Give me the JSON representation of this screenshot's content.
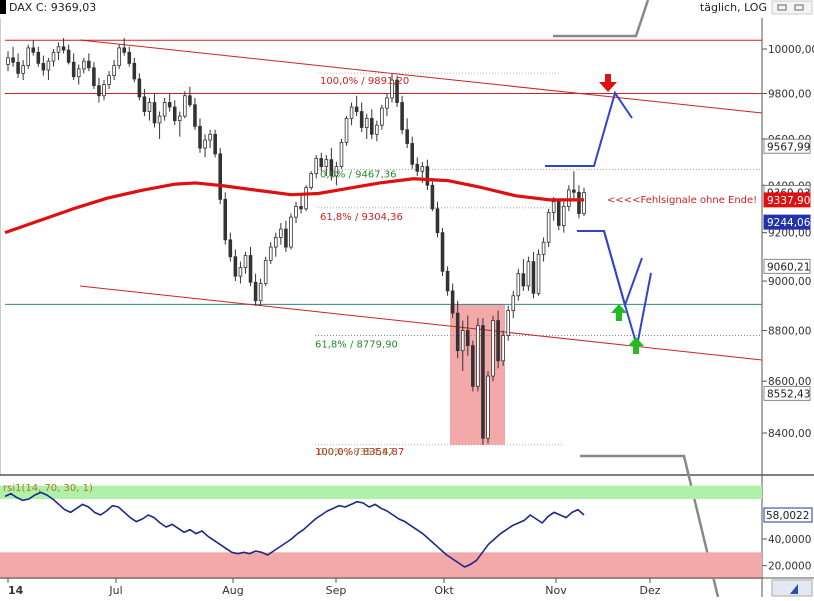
{
  "header": {
    "instrument": "DAX C: 9369,03",
    "scale": "täglich, LOG"
  },
  "chart_data": [
    {
      "type": "candlestick",
      "title": "DAX C: 9369,03",
      "scale": "log",
      "grid": false,
      "price_ticks": [
        "10000,00",
        "9800,00",
        "9600,00",
        "9400,00",
        "9200,00",
        "9000,00",
        "8800,00",
        "8600,00",
        "8400,00"
      ],
      "x_labels": [
        "14",
        "Jul",
        "Aug",
        "Sep",
        "Okt",
        "Nov",
        "Dez"
      ],
      "price_tags": [
        {
          "label": "9567,99",
          "value": 9567.99,
          "style": "outlined"
        },
        {
          "label": "9369,03",
          "value": 9369.03,
          "style": "outlined"
        },
        {
          "label": "9337,90",
          "value": 9337.9,
          "style": "red"
        },
        {
          "label": "9244,06",
          "value": 9244.06,
          "style": "blue"
        },
        {
          "label": "9060,21",
          "value": 9060.21,
          "style": "outlined"
        },
        {
          "label": "8552,43",
          "value": 8552.43,
          "style": "outlined"
        }
      ],
      "fib_labels": [
        {
          "label": "100,0% / 9891,20",
          "value": 9891.2
        },
        {
          "label": "0,0% / 9467,36",
          "value": 9467.36
        },
        {
          "label": "61,8% / 9304,36",
          "value": 9304.36
        },
        {
          "label": "61,8% / 8779,90",
          "value": 8779.9
        },
        {
          "label": "100,0% / 8354,87",
          "value": 8354.87
        },
        {
          "label": "0,0% / 8354,87",
          "value": 8354.87
        }
      ],
      "annotation": "<<<<Fehlsignale ohne Ende!",
      "horizontal_lines": [
        10040,
        9800,
        8905
      ],
      "series": [
        {
          "type": "candles",
          "values": [
            [
              9930,
              9990,
              9900,
              9960
            ],
            [
              9960,
              10010,
              9920,
              9940
            ],
            [
              9940,
              9980,
              9870,
              9890
            ],
            [
              9890,
              9950,
              9860,
              9925
            ],
            [
              9925,
              10020,
              9910,
              10005
            ],
            [
              10005,
              10040,
              9970,
              9985
            ],
            [
              9985,
              10010,
              9920,
              9935
            ],
            [
              9935,
              9970,
              9880,
              9905
            ],
            [
              9905,
              9960,
              9860,
              9945
            ],
            [
              9945,
              10000,
              9920,
              9985
            ],
            [
              9985,
              10030,
              9950,
              10010
            ],
            [
              10010,
              10050,
              9980,
              9995
            ],
            [
              9995,
              10020,
              9930,
              9940
            ],
            [
              9940,
              9980,
              9860,
              9875
            ],
            [
              9875,
              9930,
              9840,
              9910
            ],
            [
              9910,
              9960,
              9890,
              9945
            ],
            [
              9945,
              9980,
              9900,
              9915
            ],
            [
              9915,
              9940,
              9820,
              9835
            ],
            [
              9835,
              9870,
              9760,
              9790
            ],
            [
              9790,
              9860,
              9770,
              9840
            ],
            [
              9840,
              9900,
              9820,
              9880
            ],
            [
              9880,
              9950,
              9860,
              9925
            ],
            [
              9925,
              10020,
              9910,
              10005
            ],
            [
              10005,
              10050,
              9970,
              9985
            ],
            [
              9985,
              10010,
              9920,
              9935
            ],
            [
              9935,
              9960,
              9850,
              9865
            ],
            [
              9865,
              9890,
              9770,
              9785
            ],
            [
              9785,
              9820,
              9700,
              9720
            ],
            [
              9720,
              9780,
              9680,
              9760
            ],
            [
              9760,
              9800,
              9650,
              9670
            ],
            [
              9670,
              9720,
              9600,
              9700
            ],
            [
              9700,
              9780,
              9680,
              9760
            ],
            [
              9760,
              9800,
              9720,
              9740
            ],
            [
              9740,
              9770,
              9660,
              9680
            ],
            [
              9680,
              9720,
              9610,
              9700
            ],
            [
              9700,
              9810,
              9690,
              9790
            ],
            [
              9790,
              9830,
              9740,
              9750
            ],
            [
              9750,
              9780,
              9640,
              9655
            ],
            [
              9655,
              9690,
              9540,
              9560
            ],
            [
              9560,
              9620,
              9520,
              9595
            ],
            [
              9595,
              9640,
              9560,
              9620
            ],
            [
              9620,
              9640,
              9520,
              9535
            ],
            [
              9535,
              9560,
              9320,
              9340
            ],
            [
              9340,
              9370,
              9150,
              9170
            ],
            [
              9170,
              9200,
              9080,
              9100
            ],
            [
              9100,
              9130,
              9000,
              9020
            ],
            [
              9020,
              9080,
              8990,
              9055
            ],
            [
              9055,
              9120,
              9030,
              9105
            ],
            [
              9105,
              9140,
              8980,
              8995
            ],
            [
              8995,
              9030,
              8900,
              8920
            ],
            [
              8920,
              9010,
              8900,
              8990
            ],
            [
              8990,
              9100,
              8980,
              9085
            ],
            [
              9085,
              9160,
              9070,
              9140
            ],
            [
              9140,
              9200,
              9100,
              9180
            ],
            [
              9180,
              9240,
              9150,
              9215
            ],
            [
              9215,
              9250,
              9120,
              9140
            ],
            [
              9140,
              9280,
              9130,
              9265
            ],
            [
              9265,
              9330,
              9240,
              9310
            ],
            [
              9310,
              9360,
              9280,
              9300
            ],
            [
              9300,
              9400,
              9290,
              9390
            ],
            [
              9390,
              9460,
              9380,
              9450
            ],
            [
              9450,
              9530,
              9430,
              9515
            ],
            [
              9515,
              9540,
              9460,
              9480
            ],
            [
              9480,
              9530,
              9440,
              9510
            ],
            [
              9510,
              9560,
              9420,
              9440
            ],
            [
              9440,
              9500,
              9400,
              9480
            ],
            [
              9480,
              9600,
              9470,
              9585
            ],
            [
              9585,
              9700,
              9570,
              9690
            ],
            [
              9690,
              9760,
              9660,
              9740
            ],
            [
              9740,
              9790,
              9700,
              9720
            ],
            [
              9720,
              9760,
              9630,
              9650
            ],
            [
              9650,
              9710,
              9600,
              9690
            ],
            [
              9690,
              9730,
              9600,
              9620
            ],
            [
              9620,
              9680,
              9590,
              9660
            ],
            [
              9660,
              9750,
              9640,
              9735
            ],
            [
              9735,
              9800,
              9700,
              9780
            ],
            [
              9780,
              9890,
              9760,
              9860
            ],
            [
              9860,
              9880,
              9740,
              9760
            ],
            [
              9760,
              9790,
              9620,
              9640
            ],
            [
              9640,
              9690,
              9560,
              9580
            ],
            [
              9580,
              9610,
              9470,
              9490
            ],
            [
              9490,
              9520,
              9440,
              9460
            ],
            [
              9460,
              9500,
              9410,
              9480
            ],
            [
              9480,
              9510,
              9380,
              9400
            ],
            [
              9400,
              9430,
              9290,
              9300
            ],
            [
              9300,
              9330,
              9180,
              9200
            ],
            [
              9200,
              9220,
              9020,
              9040
            ],
            [
              9040,
              9060,
              8940,
              8960
            ],
            [
              8960,
              8990,
              8850,
              8870
            ],
            [
              8870,
              8920,
              8690,
              8720
            ],
            [
              8720,
              8840,
              8640,
              8800
            ],
            [
              8800,
              8860,
              8700,
              8740
            ],
            [
              8740,
              8760,
              8560,
              8580
            ],
            [
              8580,
              8850,
              8560,
              8820
            ],
            [
              8820,
              8850,
              8355,
              8380
            ],
            [
              8380,
              8640,
              8360,
              8620
            ],
            [
              8620,
              8860,
              8600,
              8840
            ],
            [
              8840,
              8880,
              8650,
              8680
            ],
            [
              8680,
              8800,
              8660,
              8780
            ],
            [
              8780,
              8900,
              8760,
              8880
            ],
            [
              8880,
              8960,
              8850,
              8940
            ],
            [
              8940,
              9050,
              8920,
              9030
            ],
            [
              9030,
              9090,
              8960,
              8980
            ],
            [
              8980,
              9100,
              8960,
              9080
            ],
            [
              9080,
              9120,
              8930,
              8950
            ],
            [
              8950,
              9130,
              8940,
              9110
            ],
            [
              9110,
              9180,
              9080,
              9160
            ],
            [
              9160,
              9300,
              9140,
              9285
            ],
            [
              9285,
              9350,
              9250,
              9330
            ],
            [
              9330,
              9340,
              9210,
              9230
            ],
            [
              9230,
              9330,
              9200,
              9310
            ],
            [
              9310,
              9400,
              9290,
              9380
            ],
            [
              9380,
              9460,
              9340,
              9370
            ],
            [
              9370,
              9400,
              9260,
              9280
            ],
            [
              9280,
              9390,
              9270,
              9369
            ]
          ]
        },
        {
          "type": "moving_average",
          "color": "#dd1111",
          "values": [
            [
              0,
              9200
            ],
            [
              0.05,
              9250
            ],
            [
              0.1,
              9300
            ],
            [
              0.15,
              9345
            ],
            [
              0.2,
              9378
            ],
            [
              0.25,
              9405
            ],
            [
              0.28,
              9410
            ],
            [
              0.32,
              9398
            ],
            [
              0.38,
              9375
            ],
            [
              0.42,
              9360
            ],
            [
              0.46,
              9365
            ],
            [
              0.5,
              9385
            ],
            [
              0.55,
              9410
            ],
            [
              0.6,
              9428
            ],
            [
              0.65,
              9420
            ],
            [
              0.7,
              9390
            ],
            [
              0.75,
              9355
            ],
            [
              0.8,
              9338
            ],
            [
              0.85,
              9338
            ]
          ]
        }
      ],
      "y_range": [
        8250,
        10120
      ]
    },
    {
      "type": "line",
      "title": "rsi1(14, 70, 30, 1)",
      "x_labels": [
        "14",
        "Jul",
        "Aug",
        "Sep",
        "Okt",
        "Nov",
        "Dez"
      ],
      "y_ticks": [
        "40,0000",
        "20,0000"
      ],
      "current_value": "58,0022",
      "bands": [
        {
          "from": 70,
          "to": 80,
          "color": "#b0f0a8"
        },
        {
          "from": 10,
          "to": 30,
          "color": "#f3a9a9"
        }
      ],
      "y_range": [
        10,
        80
      ],
      "values": [
        72,
        74,
        71,
        69,
        70,
        73,
        75,
        73,
        70,
        66,
        62,
        60,
        63,
        66,
        64,
        60,
        58,
        61,
        65,
        64,
        60,
        56,
        53,
        55,
        58,
        56,
        52,
        49,
        51,
        48,
        45,
        47,
        44,
        46,
        42,
        39,
        36,
        33,
        30,
        29,
        30,
        29,
        31,
        30,
        28,
        31,
        34,
        37,
        40,
        44,
        47,
        51,
        55,
        58,
        61,
        63,
        65,
        64,
        66,
        68,
        67,
        64,
        66,
        63,
        61,
        58,
        55,
        53,
        50,
        47,
        44,
        40,
        36,
        32,
        28,
        25,
        22,
        19,
        21,
        24,
        30,
        36,
        40,
        44,
        47,
        50,
        52,
        54,
        58,
        55,
        52,
        57,
        60,
        58,
        56,
        60,
        62,
        58
      ],
      "series": [
        {
          "name": "rsi1(14, 70, 30, 1)",
          "values": [
            72,
            74,
            71,
            69,
            70,
            73,
            75,
            73,
            70,
            66,
            62,
            60,
            63,
            66,
            64,
            60,
            58,
            61,
            65,
            64,
            60,
            56,
            53,
            55,
            58,
            56,
            52,
            49,
            51,
            48,
            45,
            47,
            44,
            46,
            42,
            39,
            36,
            33,
            30,
            29,
            30,
            29,
            31,
            30,
            28,
            31,
            34,
            37,
            40,
            44,
            47,
            51,
            55,
            58,
            61,
            63,
            65,
            64,
            66,
            68,
            67,
            64,
            66,
            63,
            61,
            58,
            55,
            53,
            50,
            47,
            44,
            40,
            36,
            32,
            28,
            25,
            22,
            19,
            21,
            24,
            30,
            36,
            40,
            44,
            47,
            50,
            52,
            54,
            58,
            55,
            52,
            57,
            60,
            58,
            56,
            60,
            62,
            58
          ]
        }
      ]
    }
  ],
  "colors": {
    "candle": "#333333",
    "channel": "#cc2222",
    "fib": "#cc2222",
    "fib_green": "#2a8a2a",
    "projection": "#3344cc",
    "support": "#2e8a8a",
    "zone": "#f3a9a9",
    "arrow_up": "#22bb22",
    "arrow_down": "#dd1111",
    "axis_text": "#333333"
  }
}
